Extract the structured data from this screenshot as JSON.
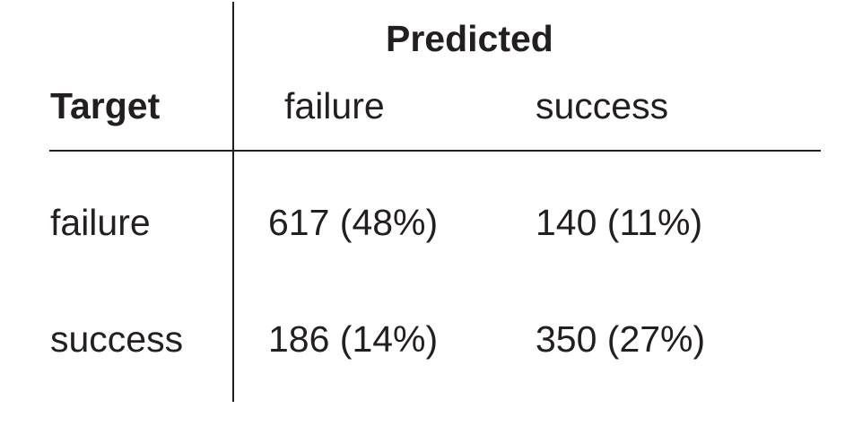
{
  "table": {
    "predicted_header": "Predicted",
    "target_header": "Target",
    "columns": [
      "failure",
      "success"
    ],
    "rows": [
      {
        "label": "failure",
        "cells": [
          "617 (48%)",
          "140 (11%)"
        ]
      },
      {
        "label": "success",
        "cells": [
          "186 (14%)",
          "350 (27%)"
        ]
      }
    ]
  },
  "colors": {
    "text": "#231f20",
    "rule": "#231f20",
    "background": "#ffffff"
  }
}
